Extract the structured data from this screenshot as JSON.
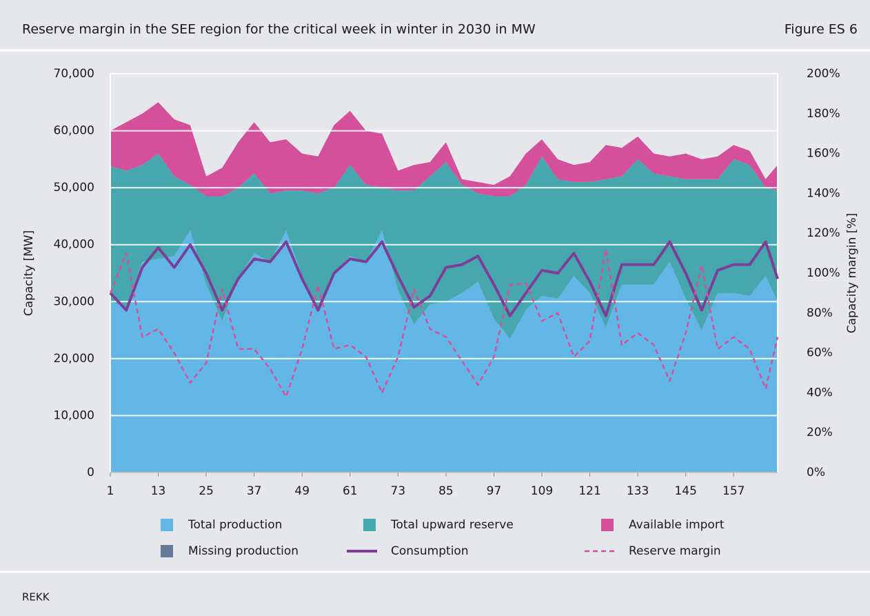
{
  "header": {
    "title": "Reserve margin in the SEE region for the critical week in winter in 2030 in MW",
    "figure": "Figure ES 6"
  },
  "chart_data": {
    "type": "area",
    "ylabel": "Capacity [MW]",
    "y2label": "Capacity margin [%]",
    "x": [
      1,
      5,
      9,
      13,
      17,
      21,
      25,
      29,
      33,
      37,
      41,
      45,
      49,
      53,
      57,
      61,
      65,
      69,
      73,
      77,
      81,
      85,
      89,
      93,
      97,
      101,
      105,
      109,
      113,
      117,
      121,
      125,
      129,
      133,
      137,
      141,
      145,
      149,
      153,
      157,
      161,
      165,
      168
    ],
    "xlim": [
      1,
      168
    ],
    "xticks": [
      1,
      13,
      25,
      37,
      49,
      61,
      73,
      85,
      97,
      109,
      121,
      133,
      145,
      157
    ],
    "ylim": [
      0,
      70000
    ],
    "yticks": [
      0,
      {
        "value": 10000,
        "label": "10,000"
      },
      {
        "value": 20000,
        "label": "20,000"
      },
      {
        "value": 30000,
        "label": "30,000"
      },
      {
        "value": 40000,
        "label": "40,000"
      },
      {
        "value": 50000,
        "label": "50,000"
      },
      {
        "value": 60000,
        "label": "60,000"
      },
      {
        "value": 70000,
        "label": "70,000"
      }
    ],
    "y2lim": [
      0,
      200
    ],
    "y2ticks": [
      {
        "value": 0,
        "label": "0%"
      },
      {
        "value": 20,
        "label": "20%"
      },
      {
        "value": 40,
        "label": "40%"
      },
      {
        "value": 60,
        "label": "60%"
      },
      {
        "value": 80,
        "label": "80%"
      },
      {
        "value": 100,
        "label": "100%"
      },
      {
        "value": 120,
        "label": "120%"
      },
      {
        "value": 140,
        "label": "140%"
      },
      {
        "value": 160,
        "label": "160%"
      },
      {
        "value": 180,
        "label": "180%"
      },
      {
        "value": 200,
        "label": "200%"
      }
    ],
    "grid": true,
    "series": [
      {
        "name": "Total production",
        "kind": "area",
        "color": "#63b7e7",
        "values": [
          30000,
          29000,
          37000,
          37500,
          38000,
          42500,
          33000,
          26500,
          34000,
          38500,
          37000,
          42500,
          34500,
          28500,
          35000,
          38000,
          37000,
          42500,
          32000,
          26000,
          29500,
          30000,
          31500,
          33500,
          27000,
          23500,
          28500,
          31000,
          30500,
          34500,
          31500,
          25500,
          33000,
          33000,
          33000,
          37000,
          30500,
          25000,
          31500,
          31500,
          31000,
          34500,
          30000
        ]
      },
      {
        "name": "Missing production",
        "kind": "area",
        "color": "#637a9b",
        "values": [
          0,
          0,
          0,
          0,
          0,
          0,
          0,
          0,
          0,
          0,
          0,
          0,
          0,
          0,
          0,
          0,
          0,
          0,
          0,
          0,
          0,
          0,
          0,
          0,
          0,
          0,
          0,
          0,
          0,
          0,
          0,
          0,
          0,
          0,
          0,
          0,
          0,
          0,
          0,
          0,
          0,
          0,
          0
        ]
      },
      {
        "name": "Total upward reserve",
        "kind": "area",
        "color": "#47a7af",
        "values": [
          23800,
          24000,
          17000,
          18500,
          14000,
          8000,
          15500,
          22000,
          16000,
          14000,
          12000,
          7000,
          15000,
          20500,
          15000,
          16000,
          13500,
          7500,
          17500,
          23500,
          22500,
          24500,
          19000,
          15500,
          21500,
          25000,
          22000,
          24500,
          21000,
          16500,
          19500,
          26000,
          19000,
          22000,
          19500,
          15000,
          21000,
          26500,
          20000,
          23500,
          23000,
          15500,
          19500
        ]
      },
      {
        "name": "Available import",
        "kind": "area",
        "color": "#d5509a",
        "values": [
          6200,
          8500,
          9000,
          9000,
          10000,
          10500,
          3500,
          5000,
          8000,
          9000,
          9000,
          9000,
          6500,
          6500,
          11000,
          9500,
          9500,
          9500,
          3500,
          4500,
          2500,
          3500,
          1000,
          2000,
          2000,
          3500,
          5500,
          3000,
          3500,
          3000,
          3500,
          6000,
          5000,
          4000,
          3500,
          3500,
          4500,
          3500,
          4000,
          2500,
          2500,
          1500,
          4500
        ]
      },
      {
        "name": "Consumption",
        "kind": "line",
        "color": "#7b3f98",
        "values": [
          31500,
          28500,
          36000,
          39500,
          36000,
          40000,
          35000,
          28500,
          34000,
          37500,
          37000,
          40500,
          34000,
          28500,
          35000,
          37500,
          37000,
          40500,
          34500,
          29000,
          31000,
          36000,
          36500,
          38000,
          33000,
          27500,
          31500,
          35500,
          35000,
          38500,
          33500,
          27500,
          36500,
          36500,
          36500,
          40500,
          35000,
          28500,
          35500,
          36500,
          36500,
          40500,
          34000
        ]
      },
      {
        "name": "Reserve margin",
        "kind": "line",
        "dash": true,
        "axis": "y2",
        "color": "#d5509a",
        "values": [
          90,
          110,
          68,
          72,
          60,
          45,
          55,
          92,
          62,
          62,
          52,
          38,
          62,
          94,
          62,
          64,
          58,
          40,
          58,
          92,
          72,
          68,
          56,
          44,
          58,
          94,
          95,
          76,
          80,
          58,
          66,
          112,
          64,
          70,
          64,
          46,
          70,
          104,
          62,
          68,
          62,
          42,
          68
        ]
      }
    ]
  },
  "footer": {
    "source": "REKK"
  }
}
